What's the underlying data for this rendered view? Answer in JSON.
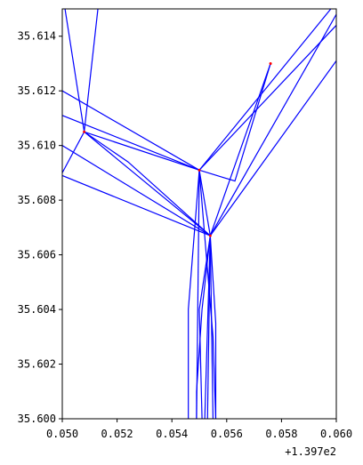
{
  "chart_data": {
    "type": "line",
    "title": "",
    "xlabel": "",
    "ylabel": "",
    "x_offset_label": "+1.397e2",
    "x_offset": 139.7,
    "xlim": [
      0.05,
      0.06
    ],
    "ylim": [
      35.6,
      35.615
    ],
    "grid": false,
    "line_color": "#0000ff",
    "marker_color": "#ff0000",
    "xticks": [
      {
        "value": 0.05,
        "label": "0.050"
      },
      {
        "value": 0.052,
        "label": "0.052"
      },
      {
        "value": 0.054,
        "label": "0.054"
      },
      {
        "value": 0.056,
        "label": "0.056"
      },
      {
        "value": 0.058,
        "label": "0.058"
      },
      {
        "value": 0.06,
        "label": "0.060"
      }
    ],
    "yticks": [
      {
        "value": 35.6,
        "label": "35.600"
      },
      {
        "value": 35.602,
        "label": "35.602"
      },
      {
        "value": 35.604,
        "label": "35.604"
      },
      {
        "value": 35.606,
        "label": "35.606"
      },
      {
        "value": 35.608,
        "label": "35.608"
      },
      {
        "value": 35.61,
        "label": "35.610"
      },
      {
        "value": 35.612,
        "label": "35.612"
      },
      {
        "value": 35.614,
        "label": "35.614"
      }
    ],
    "nodes": [
      {
        "x": 0.0508,
        "y": 35.6105
      },
      {
        "x": 0.055,
        "y": 35.6091
      },
      {
        "x": 0.0554,
        "y": 35.6067
      },
      {
        "x": 0.0576,
        "y": 35.613
      }
    ],
    "segments": [
      [
        [
          0.0501,
          35.615
        ],
        [
          0.0508,
          35.6105
        ]
      ],
      [
        [
          0.0513,
          35.615
        ],
        [
          0.0508,
          35.6105
        ]
      ],
      [
        [
          0.05,
          35.609
        ],
        [
          0.0508,
          35.6105
        ]
      ],
      [
        [
          0.0508,
          35.6105
        ],
        [
          0.0554,
          35.6067
        ]
      ],
      [
        [
          0.0508,
          35.6105
        ],
        [
          0.0524,
          35.6094
        ],
        [
          0.0554,
          35.6067
        ]
      ],
      [
        [
          0.0508,
          35.6105
        ],
        [
          0.055,
          35.6091
        ]
      ],
      [
        [
          0.05,
          35.612
        ],
        [
          0.055,
          35.6091
        ]
      ],
      [
        [
          0.05,
          35.6111
        ],
        [
          0.055,
          35.6091
        ]
      ],
      [
        [
          0.05,
          35.61
        ],
        [
          0.0554,
          35.6067
        ]
      ],
      [
        [
          0.05,
          35.6089
        ],
        [
          0.0554,
          35.6067
        ]
      ],
      [
        [
          0.055,
          35.6091
        ],
        [
          0.0554,
          35.6067
        ]
      ],
      [
        [
          0.055,
          35.6091
        ],
        [
          0.06,
          35.6144
        ]
      ],
      [
        [
          0.055,
          35.6091
        ],
        [
          0.0598,
          35.615
        ]
      ],
      [
        [
          0.055,
          35.6091
        ],
        [
          0.0563,
          35.6087
        ],
        [
          0.0576,
          35.613
        ]
      ],
      [
        [
          0.055,
          35.6091
        ],
        [
          0.0546,
          35.604
        ],
        [
          0.0546,
          35.6
        ]
      ],
      [
        [
          0.055,
          35.6091
        ],
        [
          0.0549,
          35.6
        ]
      ],
      [
        [
          0.055,
          35.6091
        ],
        [
          0.0555,
          35.603
        ],
        [
          0.0556,
          35.6
        ]
      ],
      [
        [
          0.0554,
          35.6067
        ],
        [
          0.06,
          35.6131
        ]
      ],
      [
        [
          0.0554,
          35.6067
        ],
        [
          0.06,
          35.6148
        ]
      ],
      [
        [
          0.0554,
          35.6067
        ],
        [
          0.0576,
          35.613
        ]
      ],
      [
        [
          0.0554,
          35.6067
        ],
        [
          0.0552,
          35.6
        ]
      ],
      [
        [
          0.0554,
          35.6067
        ],
        [
          0.0553,
          35.6
        ]
      ],
      [
        [
          0.0554,
          35.6067
        ],
        [
          0.0555,
          35.6
        ]
      ],
      [
        [
          0.0554,
          35.6067
        ],
        [
          0.0556,
          35.6035
        ],
        [
          0.0556,
          35.6
        ]
      ],
      [
        [
          0.0554,
          35.6067
        ],
        [
          0.0551,
          35.604
        ],
        [
          0.0549,
          35.601
        ],
        [
          0.0549,
          35.6
        ]
      ],
      [
        [
          0.0554,
          35.6067
        ],
        [
          0.055,
          35.604
        ],
        [
          0.0551,
          35.6
        ]
      ]
    ]
  }
}
